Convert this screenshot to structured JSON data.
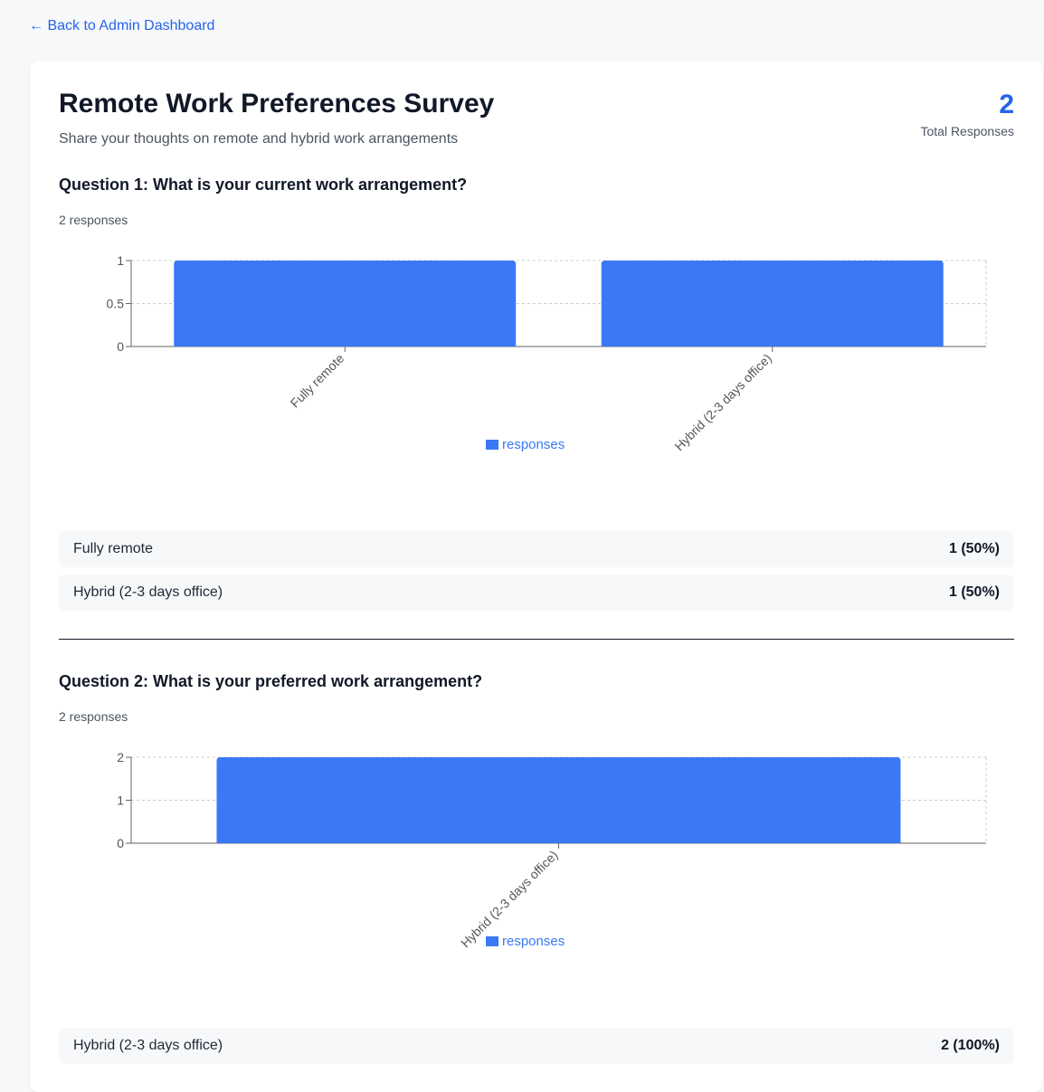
{
  "nav": {
    "back_label": "← Back to Admin Dashboard"
  },
  "survey": {
    "title": "Remote Work Preferences Survey",
    "description": "Share your thoughts on remote and hybrid work arrangements",
    "total_count": "2",
    "total_label": "Total Responses"
  },
  "colors": {
    "accent": "#2563eb",
    "bar": "#3b78f6"
  },
  "questions": [
    {
      "title": "Question 1: What is your current work arrangement?",
      "response_count": "2 responses",
      "answers": [
        {
          "label": "Fully remote",
          "value": "1 (50%)"
        },
        {
          "label": "Hybrid (2-3 days office)",
          "value": "1 (50%)"
        }
      ]
    },
    {
      "title": "Question 2: What is your preferred work arrangement?",
      "response_count": "2 responses",
      "answers": [
        {
          "label": "Hybrid (2-3 days office)",
          "value": "2 (100%)"
        }
      ]
    }
  ],
  "chart_data": [
    {
      "type": "bar",
      "categories": [
        "Fully remote",
        "Hybrid (2-3 days office)"
      ],
      "series": [
        {
          "name": "responses",
          "values": [
            1,
            1
          ]
        }
      ],
      "yticks": [
        "0",
        "0.5",
        "1"
      ],
      "ylim": [
        0,
        1
      ],
      "grid": true,
      "legend": "bottom-center"
    },
    {
      "type": "bar",
      "categories": [
        "Hybrid (2-3 days office)"
      ],
      "series": [
        {
          "name": "responses",
          "values": [
            2
          ]
        }
      ],
      "yticks": [
        "0",
        "1",
        "2"
      ],
      "ylim": [
        0,
        2
      ],
      "grid": true,
      "legend": "bottom-center"
    }
  ]
}
